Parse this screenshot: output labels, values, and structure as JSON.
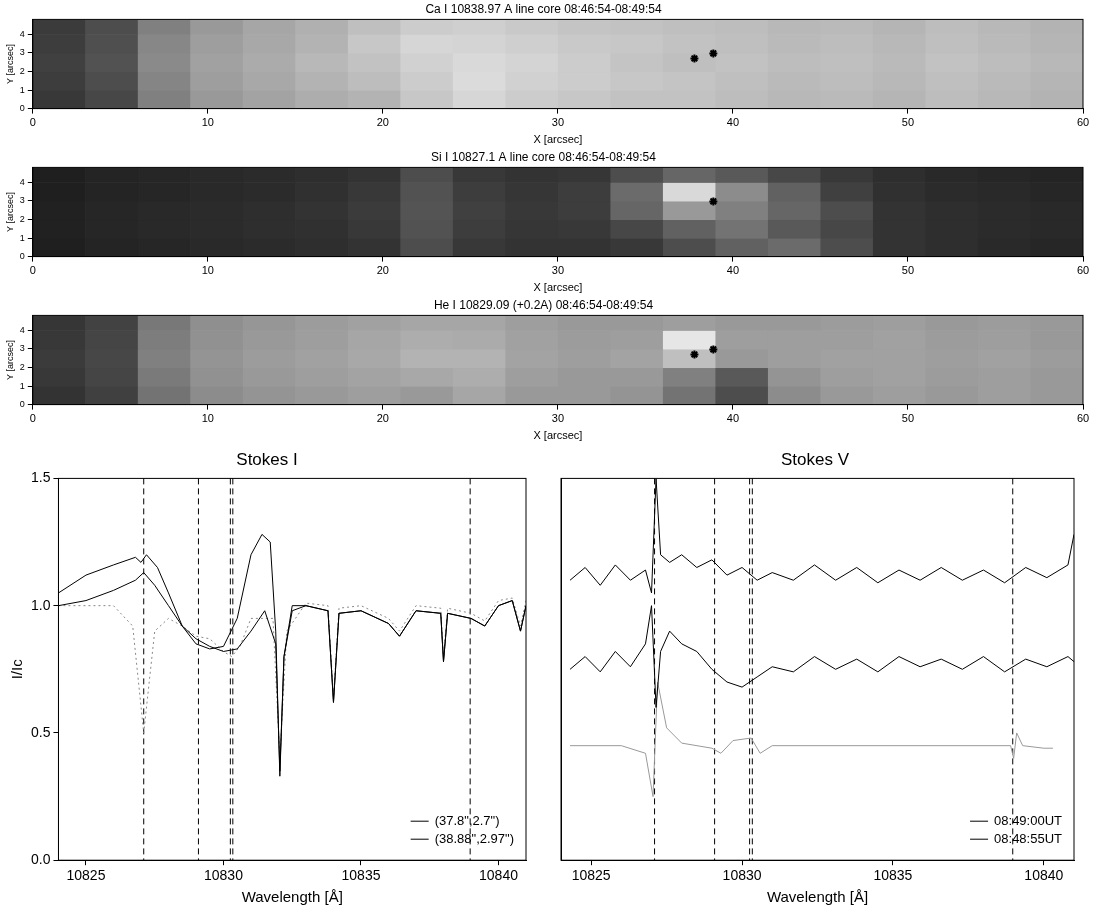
{
  "chart_data": [
    {
      "type": "heatmap",
      "title": "Ca I 10838.97 A line core 08:46:54-08:49:54",
      "x_label": "X [arcsec]",
      "y_label": "Y [arcsec]",
      "xlim": [
        0,
        60
      ],
      "ylim": [
        0,
        4.8
      ],
      "xticks": [
        0,
        10,
        20,
        30,
        40,
        50,
        60
      ],
      "yticks": [
        0,
        1,
        2,
        3,
        4
      ],
      "grid": false,
      "x_edges": [
        0,
        3,
        6,
        9,
        12,
        15,
        18,
        21,
        24,
        27,
        30,
        33,
        36,
        39,
        42,
        45,
        48,
        51,
        54,
        57,
        60
      ],
      "y_edges": [
        0,
        1,
        2,
        3,
        4,
        4.8
      ],
      "cells": [
        [
          0.22,
          0.28,
          0.5,
          0.6,
          0.64,
          0.68,
          0.7,
          0.78,
          0.84,
          0.8,
          0.78,
          0.76,
          0.76,
          0.74,
          0.72,
          0.73,
          0.71,
          0.74,
          0.72,
          0.7
        ],
        [
          0.24,
          0.3,
          0.52,
          0.62,
          0.66,
          0.7,
          0.74,
          0.8,
          0.86,
          0.82,
          0.8,
          0.78,
          0.77,
          0.75,
          0.73,
          0.74,
          0.72,
          0.75,
          0.73,
          0.71
        ],
        [
          0.25,
          0.32,
          0.54,
          0.63,
          0.67,
          0.72,
          0.76,
          0.82,
          0.85,
          0.83,
          0.8,
          0.77,
          0.75,
          0.76,
          0.74,
          0.75,
          0.73,
          0.76,
          0.74,
          0.72
        ],
        [
          0.24,
          0.31,
          0.53,
          0.62,
          0.66,
          0.7,
          0.78,
          0.84,
          0.83,
          0.81,
          0.79,
          0.78,
          0.76,
          0.75,
          0.73,
          0.74,
          0.72,
          0.75,
          0.73,
          0.71
        ],
        [
          0.23,
          0.3,
          0.5,
          0.6,
          0.65,
          0.69,
          0.75,
          0.8,
          0.81,
          0.79,
          0.77,
          0.76,
          0.75,
          0.74,
          0.72,
          0.73,
          0.71,
          0.74,
          0.72,
          0.7
        ]
      ],
      "markers": [
        {
          "x": 37.8,
          "y": 2.7
        },
        {
          "x": 38.88,
          "y": 2.97
        }
      ]
    },
    {
      "type": "heatmap",
      "title": "Si I 10827.1 A line core 08:46:54-08:49:54",
      "x_label": "X [arcsec]",
      "y_label": "Y [arcsec]",
      "xlim": [
        0,
        60
      ],
      "ylim": [
        0,
        4.8
      ],
      "xticks": [
        0,
        10,
        20,
        30,
        40,
        50,
        60
      ],
      "yticks": [
        0,
        1,
        2,
        3,
        4
      ],
      "grid": false,
      "x_edges": [
        0,
        3,
        6,
        9,
        12,
        15,
        18,
        21,
        24,
        27,
        30,
        33,
        36,
        39,
        42,
        45,
        48,
        51,
        54,
        57,
        60
      ],
      "y_edges": [
        0,
        1,
        2,
        3,
        4,
        4.8
      ],
      "cells": [
        [
          0.12,
          0.14,
          0.15,
          0.16,
          0.17,
          0.18,
          0.2,
          0.3,
          0.22,
          0.2,
          0.2,
          0.22,
          0.3,
          0.38,
          0.42,
          0.3,
          0.2,
          0.18,
          0.16,
          0.15
        ],
        [
          0.13,
          0.15,
          0.16,
          0.17,
          0.18,
          0.19,
          0.22,
          0.32,
          0.24,
          0.21,
          0.22,
          0.28,
          0.38,
          0.45,
          0.35,
          0.28,
          0.2,
          0.18,
          0.17,
          0.16
        ],
        [
          0.13,
          0.15,
          0.16,
          0.17,
          0.18,
          0.2,
          0.23,
          0.33,
          0.25,
          0.22,
          0.24,
          0.4,
          0.6,
          0.5,
          0.4,
          0.3,
          0.2,
          0.18,
          0.17,
          0.16
        ],
        [
          0.12,
          0.14,
          0.15,
          0.16,
          0.17,
          0.19,
          0.22,
          0.32,
          0.24,
          0.21,
          0.24,
          0.42,
          0.85,
          0.55,
          0.38,
          0.25,
          0.19,
          0.17,
          0.16,
          0.15
        ],
        [
          0.12,
          0.14,
          0.15,
          0.16,
          0.17,
          0.18,
          0.2,
          0.3,
          0.22,
          0.2,
          0.21,
          0.3,
          0.4,
          0.35,
          0.28,
          0.22,
          0.18,
          0.16,
          0.15,
          0.14
        ]
      ],
      "markers": [
        {
          "x": 38.88,
          "y": 2.97
        }
      ]
    },
    {
      "type": "heatmap",
      "title": "He I 10829.09 (+0.2A) 08:46:54-08:49:54",
      "x_label": "X [arcsec]",
      "y_label": "Y [arcsec]",
      "xlim": [
        0,
        60
      ],
      "ylim": [
        0,
        4.8
      ],
      "xticks": [
        0,
        10,
        20,
        30,
        40,
        50,
        60
      ],
      "yticks": [
        0,
        1,
        2,
        3,
        4
      ],
      "grid": false,
      "x_edges": [
        0,
        3,
        6,
        9,
        12,
        15,
        18,
        21,
        24,
        27,
        30,
        33,
        36,
        39,
        42,
        45,
        48,
        51,
        54,
        57,
        60
      ],
      "y_edges": [
        0,
        1,
        2,
        3,
        4,
        4.8
      ],
      "cells": [
        [
          0.2,
          0.25,
          0.45,
          0.55,
          0.58,
          0.6,
          0.62,
          0.6,
          0.65,
          0.6,
          0.6,
          0.58,
          0.45,
          0.3,
          0.55,
          0.6,
          0.62,
          0.6,
          0.62,
          0.6
        ],
        [
          0.22,
          0.27,
          0.48,
          0.57,
          0.6,
          0.62,
          0.64,
          0.66,
          0.68,
          0.62,
          0.6,
          0.6,
          0.5,
          0.35,
          0.58,
          0.62,
          0.63,
          0.61,
          0.62,
          0.6
        ],
        [
          0.23,
          0.28,
          0.5,
          0.58,
          0.61,
          0.63,
          0.66,
          0.7,
          0.7,
          0.64,
          0.62,
          0.64,
          0.75,
          0.6,
          0.62,
          0.63,
          0.63,
          0.62,
          0.63,
          0.61
        ],
        [
          0.22,
          0.27,
          0.49,
          0.57,
          0.6,
          0.62,
          0.65,
          0.68,
          0.67,
          0.63,
          0.61,
          0.62,
          0.9,
          0.62,
          0.62,
          0.62,
          0.63,
          0.61,
          0.62,
          0.6
        ],
        [
          0.21,
          0.26,
          0.47,
          0.56,
          0.59,
          0.61,
          0.63,
          0.65,
          0.65,
          0.62,
          0.6,
          0.6,
          0.62,
          0.6,
          0.6,
          0.61,
          0.62,
          0.6,
          0.61,
          0.6
        ]
      ],
      "markers": [
        {
          "x": 37.8,
          "y": 2.7
        },
        {
          "x": 38.88,
          "y": 2.97
        }
      ]
    },
    {
      "type": "line",
      "title": "Stokes I",
      "x_label": "Wavelength [Å]",
      "y_label": "I/Ic",
      "xlim": [
        10824,
        10841
      ],
      "ylim": [
        0,
        1.5
      ],
      "xticks": [
        10825,
        10830,
        10835,
        10840
      ],
      "yticks": [
        {
          "value": 0,
          "label": "0.0"
        },
        {
          "value": 0.5,
          "label": "0.5"
        },
        {
          "value": 1,
          "label": "1.0"
        },
        {
          "value": 1.5,
          "label": "1.5"
        }
      ],
      "grid": false,
      "legend": "lower right",
      "vlines": [
        10827.1,
        10829.09,
        10830.25,
        10830.34,
        10838.97
      ],
      "series": [
        {
          "name": "(37.8\",2.7\")",
          "color": "#000000",
          "line_style": "solid",
          "x": [
            10824,
            10825,
            10826,
            10826.8,
            10827.1,
            10827.5,
            10828,
            10828.5,
            10829,
            10829.5,
            10830,
            10830.5,
            10831,
            10831.5,
            10831.9,
            10832.05,
            10832.2,
            10832.5,
            10833,
            10833.8,
            10834.0,
            10834.2,
            10835,
            10836,
            10836.4,
            10837,
            10837.9,
            10838.0,
            10838.15,
            10839,
            10839.5,
            10840,
            10840.5,
            10840.8,
            10841
          ],
          "values": [
            1.0,
            1.02,
            1.06,
            1.1,
            1.13,
            1.08,
            1.0,
            0.92,
            0.87,
            0.84,
            0.82,
            0.83,
            0.9,
            0.98,
            0.85,
            0.35,
            0.8,
            0.98,
            1.0,
            0.98,
            0.62,
            0.97,
            0.98,
            0.93,
            0.88,
            0.98,
            0.97,
            0.78,
            0.97,
            0.95,
            0.92,
            1.0,
            1.02,
            0.9,
            1.0
          ]
        },
        {
          "name": "(38.88\",2.97\")",
          "color": "#000000",
          "line_style": "solid",
          "x": [
            10824,
            10825,
            10826,
            10826.8,
            10827.0,
            10827.2,
            10827.6,
            10828,
            10828.5,
            10829,
            10829.5,
            10830,
            10830.5,
            10831,
            10831.4,
            10831.7,
            10831.9,
            10832.05,
            10832.2,
            10832.5,
            10833,
            10833.8,
            10834.0,
            10834.2,
            10835,
            10836,
            10836.4,
            10837,
            10837.9,
            10838.0,
            10838.15,
            10839,
            10839.5,
            10840,
            10840.5,
            10840.8,
            10841
          ],
          "values": [
            1.05,
            1.12,
            1.16,
            1.19,
            1.17,
            1.2,
            1.15,
            1.05,
            0.92,
            0.85,
            0.83,
            0.84,
            0.95,
            1.2,
            1.28,
            1.25,
            0.9,
            0.33,
            0.8,
            1.0,
            1.0,
            0.98,
            0.62,
            0.97,
            0.98,
            0.93,
            0.88,
            0.98,
            0.97,
            0.78,
            0.97,
            0.95,
            0.92,
            1.0,
            1.02,
            0.9,
            1.0
          ]
        },
        {
          "color": "#888888",
          "line_style": "dotted",
          "x": [
            10824,
            10826,
            10826.7,
            10827.1,
            10827.5,
            10828,
            10828.5,
            10829,
            10829.5,
            10830,
            10830.3,
            10830.6,
            10831,
            10831.8,
            10832.05,
            10832.3,
            10833,
            10833.8,
            10834.0,
            10834.2,
            10835,
            10836,
            10836.4,
            10837,
            10837.9,
            10838.0,
            10838.15,
            10839,
            10839.5,
            10840,
            10840.5,
            10840.8,
            10841
          ],
          "values": [
            1.0,
            1.0,
            0.92,
            0.5,
            0.9,
            0.95,
            0.92,
            0.88,
            0.87,
            0.82,
            0.8,
            0.84,
            0.95,
            0.95,
            0.4,
            0.9,
            1.01,
            1.0,
            0.64,
            0.99,
            1.0,
            0.95,
            0.9,
            1.0,
            0.99,
            0.8,
            0.99,
            0.97,
            0.94,
            1.02,
            1.03,
            0.92,
            1.02
          ]
        }
      ]
    },
    {
      "type": "line",
      "title": "Stokes V",
      "x_label": "Wavelength [Å]",
      "xlim": [
        10824,
        10841
      ],
      "ylim": [
        0,
        1.5
      ],
      "xticks": [
        10825,
        10830,
        10835,
        10840
      ],
      "tick_labels": "x",
      "grid": false,
      "legend": "lower right",
      "vlines": [
        10827.1,
        10829.09,
        10830.25,
        10830.34,
        10838.97
      ],
      "series": [
        {
          "name": "08:49:00UT",
          "color": "#000000",
          "line_style": "solid",
          "x": [
            10824.3,
            10824.8,
            10825.3,
            10825.8,
            10826.3,
            10826.8,
            10827.0,
            10827.15,
            10827.3,
            10827.6,
            10828,
            10828.5,
            10829,
            10829.5,
            10830,
            10830.5,
            10831,
            10831.7,
            10832.4,
            10833.1,
            10833.8,
            10834.5,
            10835.2,
            10835.9,
            10836.6,
            10837.3,
            10838,
            10838.7,
            10839.4,
            10840.1,
            10840.8,
            10841
          ],
          "values": [
            1.1,
            1.15,
            1.08,
            1.16,
            1.1,
            1.14,
            1.05,
            1.5,
            1.2,
            1.17,
            1.2,
            1.15,
            1.18,
            1.12,
            1.15,
            1.1,
            1.13,
            1.1,
            1.16,
            1.1,
            1.15,
            1.09,
            1.14,
            1.1,
            1.15,
            1.1,
            1.14,
            1.09,
            1.15,
            1.11,
            1.16,
            1.28
          ]
        },
        {
          "name": "08:48:55UT",
          "color": "#000000",
          "line_style": "solid",
          "x": [
            10824.3,
            10824.8,
            10825.3,
            10825.8,
            10826.3,
            10826.8,
            10827.0,
            10827.15,
            10827.3,
            10827.6,
            10828,
            10828.5,
            10829,
            10829.5,
            10830,
            10830.5,
            10831,
            10831.7,
            10832.4,
            10833.1,
            10833.8,
            10834.5,
            10835.2,
            10835.9,
            10836.6,
            10837.3,
            10838,
            10838.7,
            10839.4,
            10840.1,
            10840.8,
            10841
          ],
          "values": [
            0.75,
            0.8,
            0.74,
            0.82,
            0.76,
            0.85,
            1.0,
            0.6,
            0.82,
            0.9,
            0.85,
            0.82,
            0.75,
            0.7,
            0.68,
            0.72,
            0.76,
            0.74,
            0.8,
            0.75,
            0.79,
            0.74,
            0.8,
            0.76,
            0.79,
            0.75,
            0.8,
            0.74,
            0.79,
            0.76,
            0.8,
            0.78
          ]
        },
        {
          "color": "#999999",
          "line_style": "solid",
          "x": [
            10824.3,
            10826,
            10826.8,
            10827.05,
            10827.2,
            10827.5,
            10828,
            10829,
            10829.3,
            10829.7,
            10830.3,
            10830.6,
            10831,
            10835,
            10838.9,
            10839,
            10839.1,
            10839.3,
            10840,
            10840.3
          ],
          "values": [
            0.45,
            0.45,
            0.42,
            0.25,
            0.7,
            0.52,
            0.46,
            0.44,
            0.42,
            0.47,
            0.48,
            0.42,
            0.45,
            0.45,
            0.45,
            0.4,
            0.5,
            0.45,
            0.44,
            0.44
          ]
        }
      ]
    }
  ]
}
